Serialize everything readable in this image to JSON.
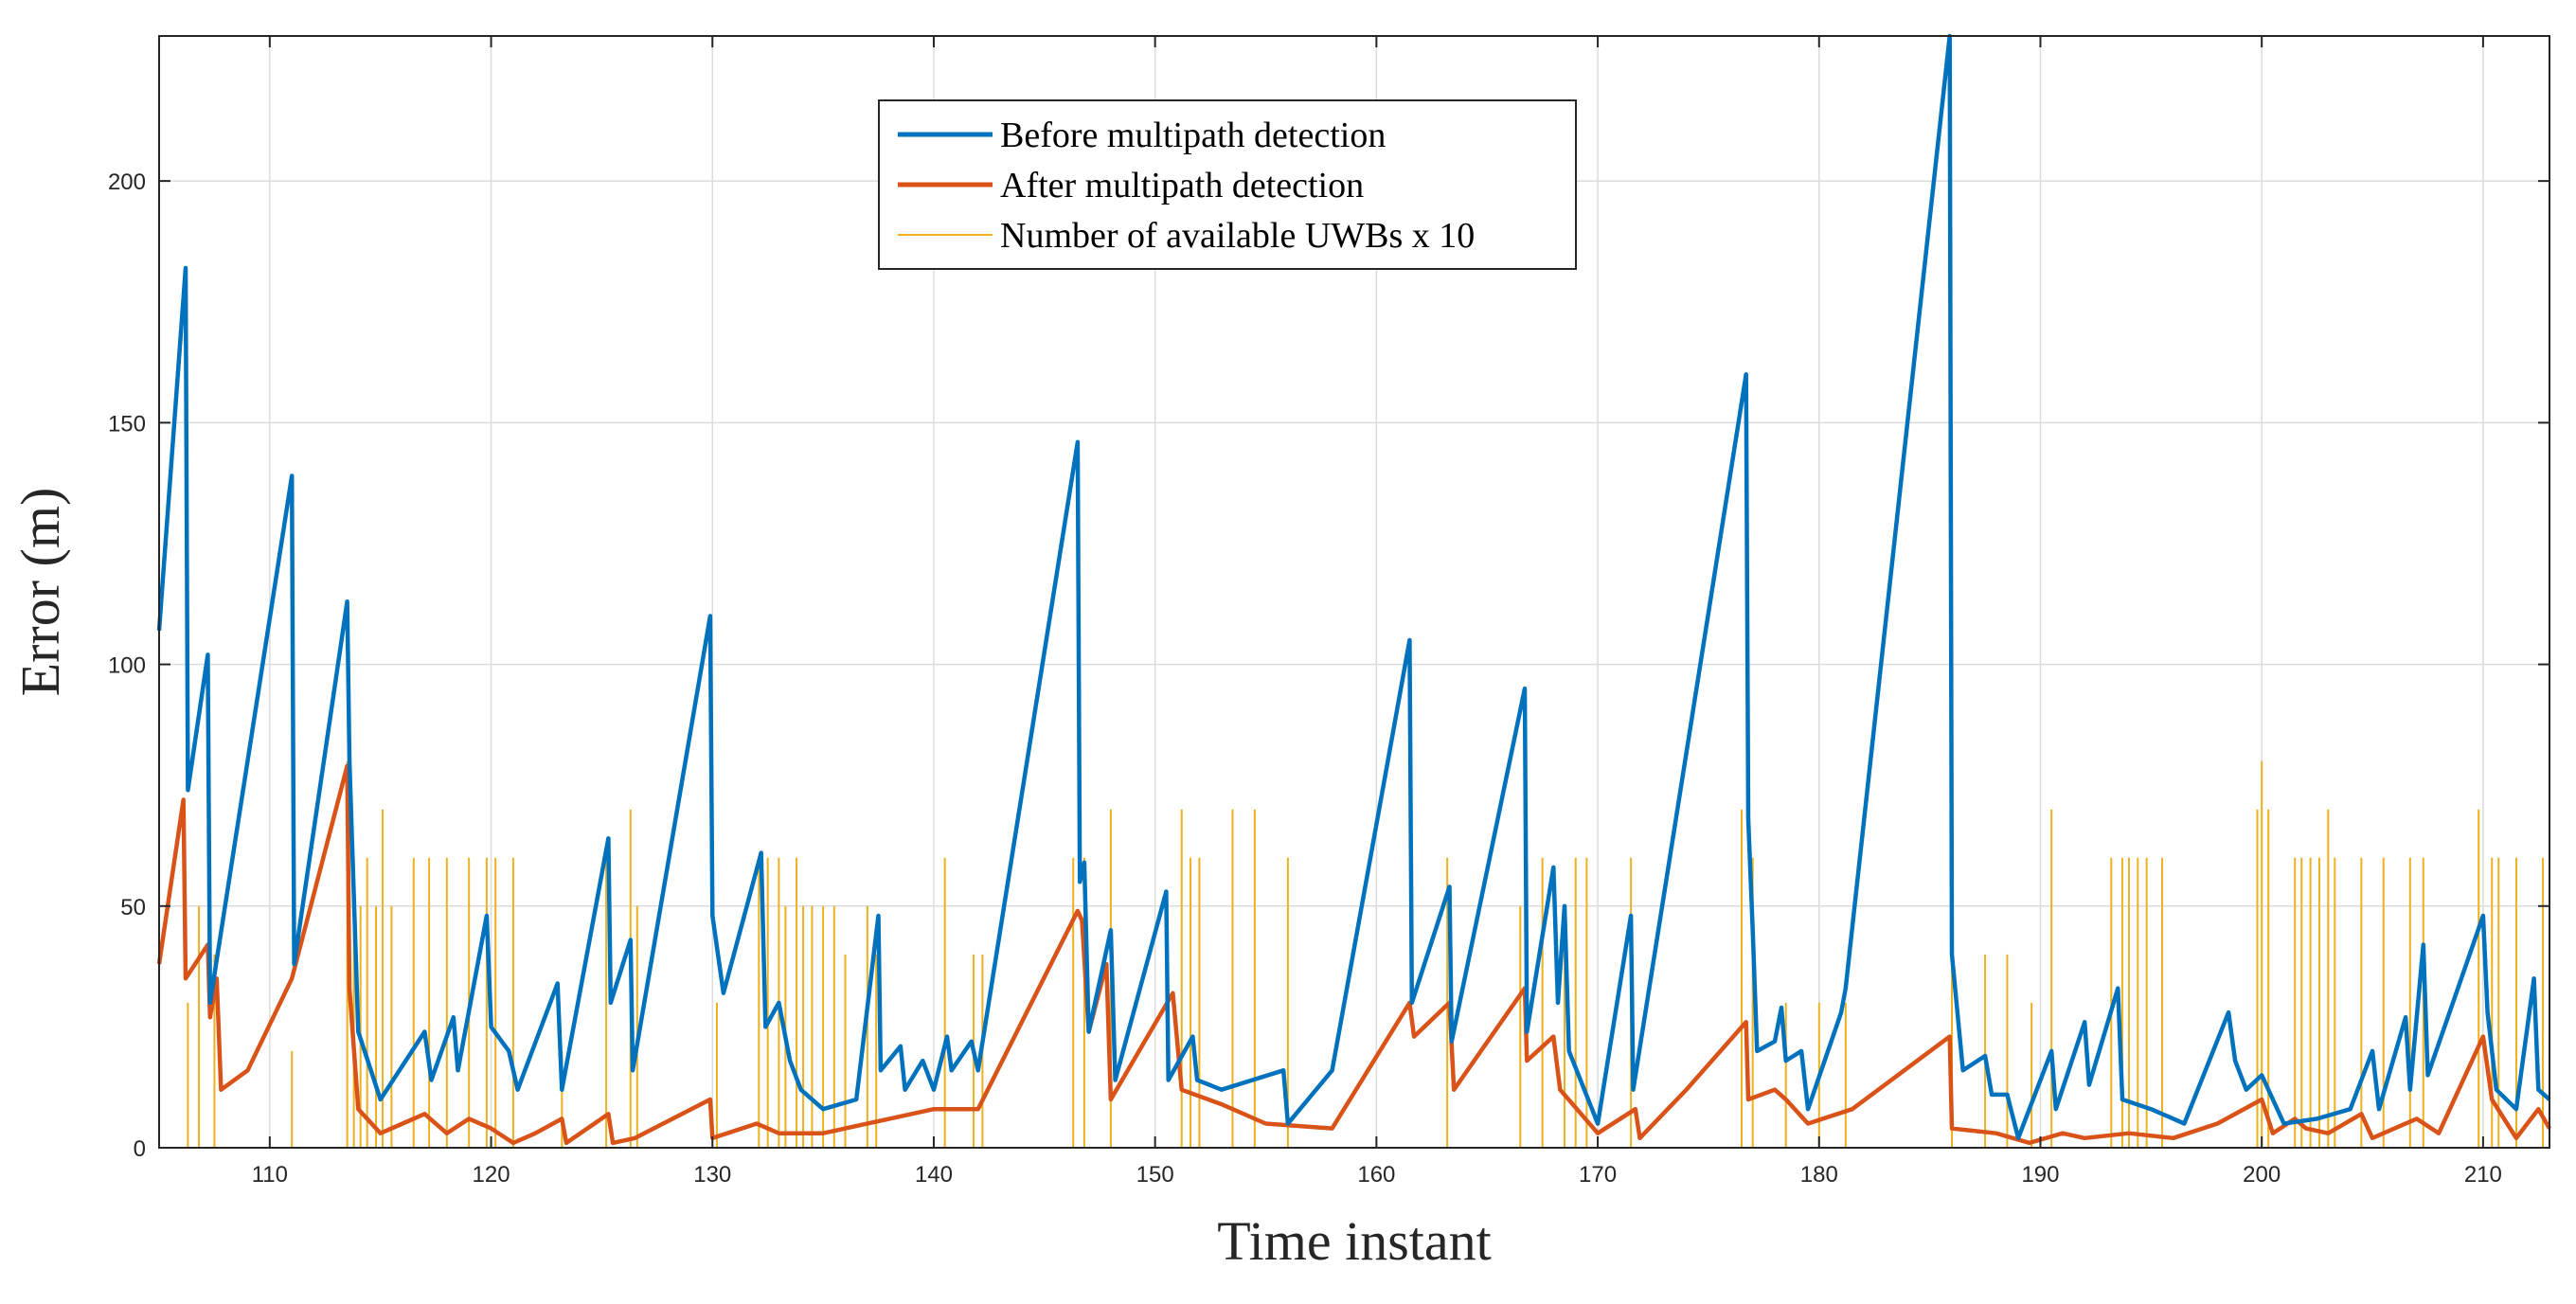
{
  "chart_data": {
    "type": "line",
    "title": "",
    "xlabel": "Time instant",
    "ylabel": "Error (m)",
    "xlim": [
      105,
      213
    ],
    "ylim": [
      0,
      230
    ],
    "grid": true,
    "legend_position": "top-center",
    "x_ticks": [
      110,
      120,
      130,
      140,
      150,
      160,
      170,
      180,
      190,
      200,
      210
    ],
    "y_ticks": [
      0,
      50,
      100,
      150,
      200
    ],
    "colors": {
      "before": "#0072BD",
      "after": "#D95319",
      "uwb": "#EDB120"
    },
    "series": [
      {
        "name": "Before multipath detection",
        "points": [
          [
            105,
            107
          ],
          [
            106.2,
            182
          ],
          [
            106.3,
            74
          ],
          [
            107.2,
            102
          ],
          [
            107.3,
            30
          ],
          [
            111,
            139
          ],
          [
            111.1,
            38
          ],
          [
            113.5,
            113
          ],
          [
            113.6,
            80
          ],
          [
            114,
            24
          ],
          [
            115,
            10
          ],
          [
            117,
            24
          ],
          [
            117.3,
            14
          ],
          [
            118.3,
            27
          ],
          [
            118.5,
            16
          ],
          [
            119.8,
            48
          ],
          [
            120,
            25
          ],
          [
            120.8,
            20
          ],
          [
            121.2,
            12
          ],
          [
            123,
            34
          ],
          [
            123.2,
            12
          ],
          [
            125.3,
            64
          ],
          [
            125.4,
            30
          ],
          [
            126.3,
            43
          ],
          [
            126.4,
            16
          ],
          [
            129.9,
            110
          ],
          [
            130,
            48
          ],
          [
            130.5,
            32
          ],
          [
            132.2,
            61
          ],
          [
            132.4,
            25
          ],
          [
            133,
            30
          ],
          [
            133.5,
            18
          ],
          [
            134,
            12
          ],
          [
            135,
            8
          ],
          [
            136.5,
            10
          ],
          [
            137.5,
            48
          ],
          [
            137.6,
            16
          ],
          [
            138.5,
            21
          ],
          [
            138.7,
            12
          ],
          [
            139.5,
            18
          ],
          [
            140,
            12
          ],
          [
            140.6,
            23
          ],
          [
            140.8,
            16
          ],
          [
            141.7,
            22
          ],
          [
            142,
            16
          ],
          [
            146.5,
            146
          ],
          [
            146.6,
            55
          ],
          [
            146.8,
            59
          ],
          [
            147,
            24
          ],
          [
            148,
            45
          ],
          [
            148.2,
            14
          ],
          [
            150.5,
            53
          ],
          [
            150.6,
            14
          ],
          [
            151.7,
            23
          ],
          [
            151.9,
            14
          ],
          [
            153,
            12
          ],
          [
            155.8,
            16
          ],
          [
            156,
            5
          ],
          [
            158,
            16
          ],
          [
            161.5,
            105
          ],
          [
            161.6,
            30
          ],
          [
            163.3,
            54
          ],
          [
            163.4,
            22
          ],
          [
            166.7,
            95
          ],
          [
            166.8,
            24
          ],
          [
            168,
            58
          ],
          [
            168.2,
            30
          ],
          [
            168.5,
            50
          ],
          [
            168.7,
            20
          ],
          [
            170,
            5
          ],
          [
            171.5,
            48
          ],
          [
            171.6,
            12
          ],
          [
            176.7,
            160
          ],
          [
            176.8,
            68
          ],
          [
            177,
            45
          ],
          [
            177.2,
            20
          ],
          [
            178,
            22
          ],
          [
            178.3,
            29
          ],
          [
            178.5,
            18
          ],
          [
            179.2,
            20
          ],
          [
            179.5,
            8
          ],
          [
            181,
            28
          ],
          [
            181.2,
            33
          ],
          [
            185.9,
            230
          ],
          [
            186,
            40
          ],
          [
            186.5,
            16
          ],
          [
            187.5,
            19
          ],
          [
            187.8,
            11
          ],
          [
            188.5,
            11
          ],
          [
            189,
            2
          ],
          [
            190.5,
            20
          ],
          [
            190.7,
            8
          ],
          [
            192,
            26
          ],
          [
            192.2,
            13
          ],
          [
            193.5,
            33
          ],
          [
            193.7,
            10
          ],
          [
            195,
            8
          ],
          [
            196.5,
            5
          ],
          [
            198.5,
            28
          ],
          [
            198.8,
            18
          ],
          [
            199.3,
            12
          ],
          [
            200,
            15
          ],
          [
            201,
            5
          ],
          [
            202.5,
            6
          ],
          [
            204,
            8
          ],
          [
            205,
            20
          ],
          [
            205.3,
            8
          ],
          [
            206.5,
            27
          ],
          [
            206.7,
            12
          ],
          [
            207.3,
            42
          ],
          [
            207.5,
            15
          ],
          [
            210,
            48
          ],
          [
            210.2,
            28
          ],
          [
            210.6,
            12
          ],
          [
            211.5,
            8
          ],
          [
            212.3,
            35
          ],
          [
            212.5,
            12
          ],
          [
            213,
            10
          ]
        ]
      },
      {
        "name": "After multipath detection",
        "points": [
          [
            105,
            38
          ],
          [
            106.1,
            72
          ],
          [
            106.2,
            35
          ],
          [
            107.2,
            42
          ],
          [
            107.3,
            27
          ],
          [
            107.6,
            35
          ],
          [
            107.8,
            12
          ],
          [
            109,
            16
          ],
          [
            111,
            35
          ],
          [
            113.5,
            79
          ],
          [
            113.6,
            33
          ],
          [
            114,
            8
          ],
          [
            115,
            3
          ],
          [
            116,
            5
          ],
          [
            117,
            7
          ],
          [
            118,
            3
          ],
          [
            119,
            6
          ],
          [
            120,
            4
          ],
          [
            121,
            1
          ],
          [
            122,
            3
          ],
          [
            123.2,
            6
          ],
          [
            123.4,
            1
          ],
          [
            125.3,
            7
          ],
          [
            125.5,
            1
          ],
          [
            126.5,
            2
          ],
          [
            129.9,
            10
          ],
          [
            130,
            2
          ],
          [
            132,
            5
          ],
          [
            133,
            3
          ],
          [
            135,
            3
          ],
          [
            138,
            6
          ],
          [
            140,
            8
          ],
          [
            142,
            8
          ],
          [
            146.5,
            49
          ],
          [
            146.7,
            47
          ],
          [
            147,
            24
          ],
          [
            147.8,
            38
          ],
          [
            148,
            10
          ],
          [
            150.8,
            32
          ],
          [
            151.2,
            12
          ],
          [
            153,
            9
          ],
          [
            155,
            5
          ],
          [
            158,
            4
          ],
          [
            161.5,
            30
          ],
          [
            161.7,
            23
          ],
          [
            163.3,
            30
          ],
          [
            163.5,
            12
          ],
          [
            166.7,
            33
          ],
          [
            166.8,
            18
          ],
          [
            168,
            23
          ],
          [
            168.3,
            12
          ],
          [
            170,
            3
          ],
          [
            171.7,
            8
          ],
          [
            171.9,
            2
          ],
          [
            174,
            12
          ],
          [
            176.7,
            26
          ],
          [
            176.8,
            10
          ],
          [
            178,
            12
          ],
          [
            178.5,
            10
          ],
          [
            179.5,
            5
          ],
          [
            181.5,
            8
          ],
          [
            185.9,
            23
          ],
          [
            186,
            4
          ],
          [
            188,
            3
          ],
          [
            189.5,
            1
          ],
          [
            191,
            3
          ],
          [
            192,
            2
          ],
          [
            194,
            3
          ],
          [
            196,
            2
          ],
          [
            198,
            5
          ],
          [
            200,
            10
          ],
          [
            200.5,
            3
          ],
          [
            201.5,
            6
          ],
          [
            202,
            4
          ],
          [
            203,
            3
          ],
          [
            204.5,
            7
          ],
          [
            205,
            2
          ],
          [
            207,
            6
          ],
          [
            208,
            3
          ],
          [
            210,
            23
          ],
          [
            210.4,
            10
          ],
          [
            211.5,
            2
          ],
          [
            212.5,
            8
          ],
          [
            213,
            4
          ]
        ]
      },
      {
        "name": "Number of available UWBs x 10",
        "baseline": 0,
        "spikes": [
          [
            106.3,
            30
          ],
          [
            106.8,
            50
          ],
          [
            107.5,
            40
          ],
          [
            111,
            20
          ],
          [
            113.5,
            80
          ],
          [
            113.8,
            60
          ],
          [
            114.1,
            50
          ],
          [
            114.4,
            60
          ],
          [
            114.8,
            50
          ],
          [
            115.1,
            70
          ],
          [
            115.5,
            50
          ],
          [
            116.5,
            60
          ],
          [
            117.2,
            60
          ],
          [
            118,
            60
          ],
          [
            119,
            60
          ],
          [
            119.8,
            60
          ],
          [
            120.2,
            60
          ],
          [
            121,
            60
          ],
          [
            123.2,
            20
          ],
          [
            125.2,
            60
          ],
          [
            126.3,
            70
          ],
          [
            126.6,
            50
          ],
          [
            130.2,
            30
          ],
          [
            132.1,
            60
          ],
          [
            132.5,
            60
          ],
          [
            133,
            60
          ],
          [
            133.3,
            50
          ],
          [
            133.8,
            60
          ],
          [
            134.1,
            50
          ],
          [
            134.5,
            50
          ],
          [
            135,
            50
          ],
          [
            135.5,
            50
          ],
          [
            136,
            40
          ],
          [
            137,
            50
          ],
          [
            137.4,
            40
          ],
          [
            140.5,
            60
          ],
          [
            141.8,
            40
          ],
          [
            142.2,
            40
          ],
          [
            146.3,
            60
          ],
          [
            146.8,
            60
          ],
          [
            148,
            70
          ],
          [
            151.2,
            70
          ],
          [
            151.6,
            60
          ],
          [
            152,
            60
          ],
          [
            153.5,
            70
          ],
          [
            154.5,
            70
          ],
          [
            156,
            60
          ],
          [
            163.2,
            60
          ],
          [
            166.5,
            50
          ],
          [
            167.5,
            60
          ],
          [
            168.5,
            50
          ],
          [
            169,
            60
          ],
          [
            169.5,
            60
          ],
          [
            171.5,
            60
          ],
          [
            176.5,
            70
          ],
          [
            177,
            60
          ],
          [
            178.5,
            30
          ],
          [
            180,
            30
          ],
          [
            181.2,
            30
          ],
          [
            186,
            40
          ],
          [
            187.5,
            40
          ],
          [
            188.5,
            40
          ],
          [
            189.6,
            30
          ],
          [
            190.5,
            70
          ],
          [
            193.2,
            60
          ],
          [
            193.7,
            60
          ],
          [
            194,
            60
          ],
          [
            194.4,
            60
          ],
          [
            194.8,
            60
          ],
          [
            195.5,
            60
          ],
          [
            199.8,
            70
          ],
          [
            200,
            80
          ],
          [
            200.3,
            70
          ],
          [
            201.5,
            60
          ],
          [
            201.8,
            60
          ],
          [
            202.2,
            60
          ],
          [
            202.6,
            60
          ],
          [
            203,
            70
          ],
          [
            203.3,
            60
          ],
          [
            204.5,
            60
          ],
          [
            205.5,
            60
          ],
          [
            206.7,
            60
          ],
          [
            207.3,
            60
          ],
          [
            209.8,
            70
          ],
          [
            210.4,
            60
          ],
          [
            210.7,
            60
          ],
          [
            211.5,
            60
          ],
          [
            212.7,
            60
          ]
        ]
      }
    ]
  }
}
